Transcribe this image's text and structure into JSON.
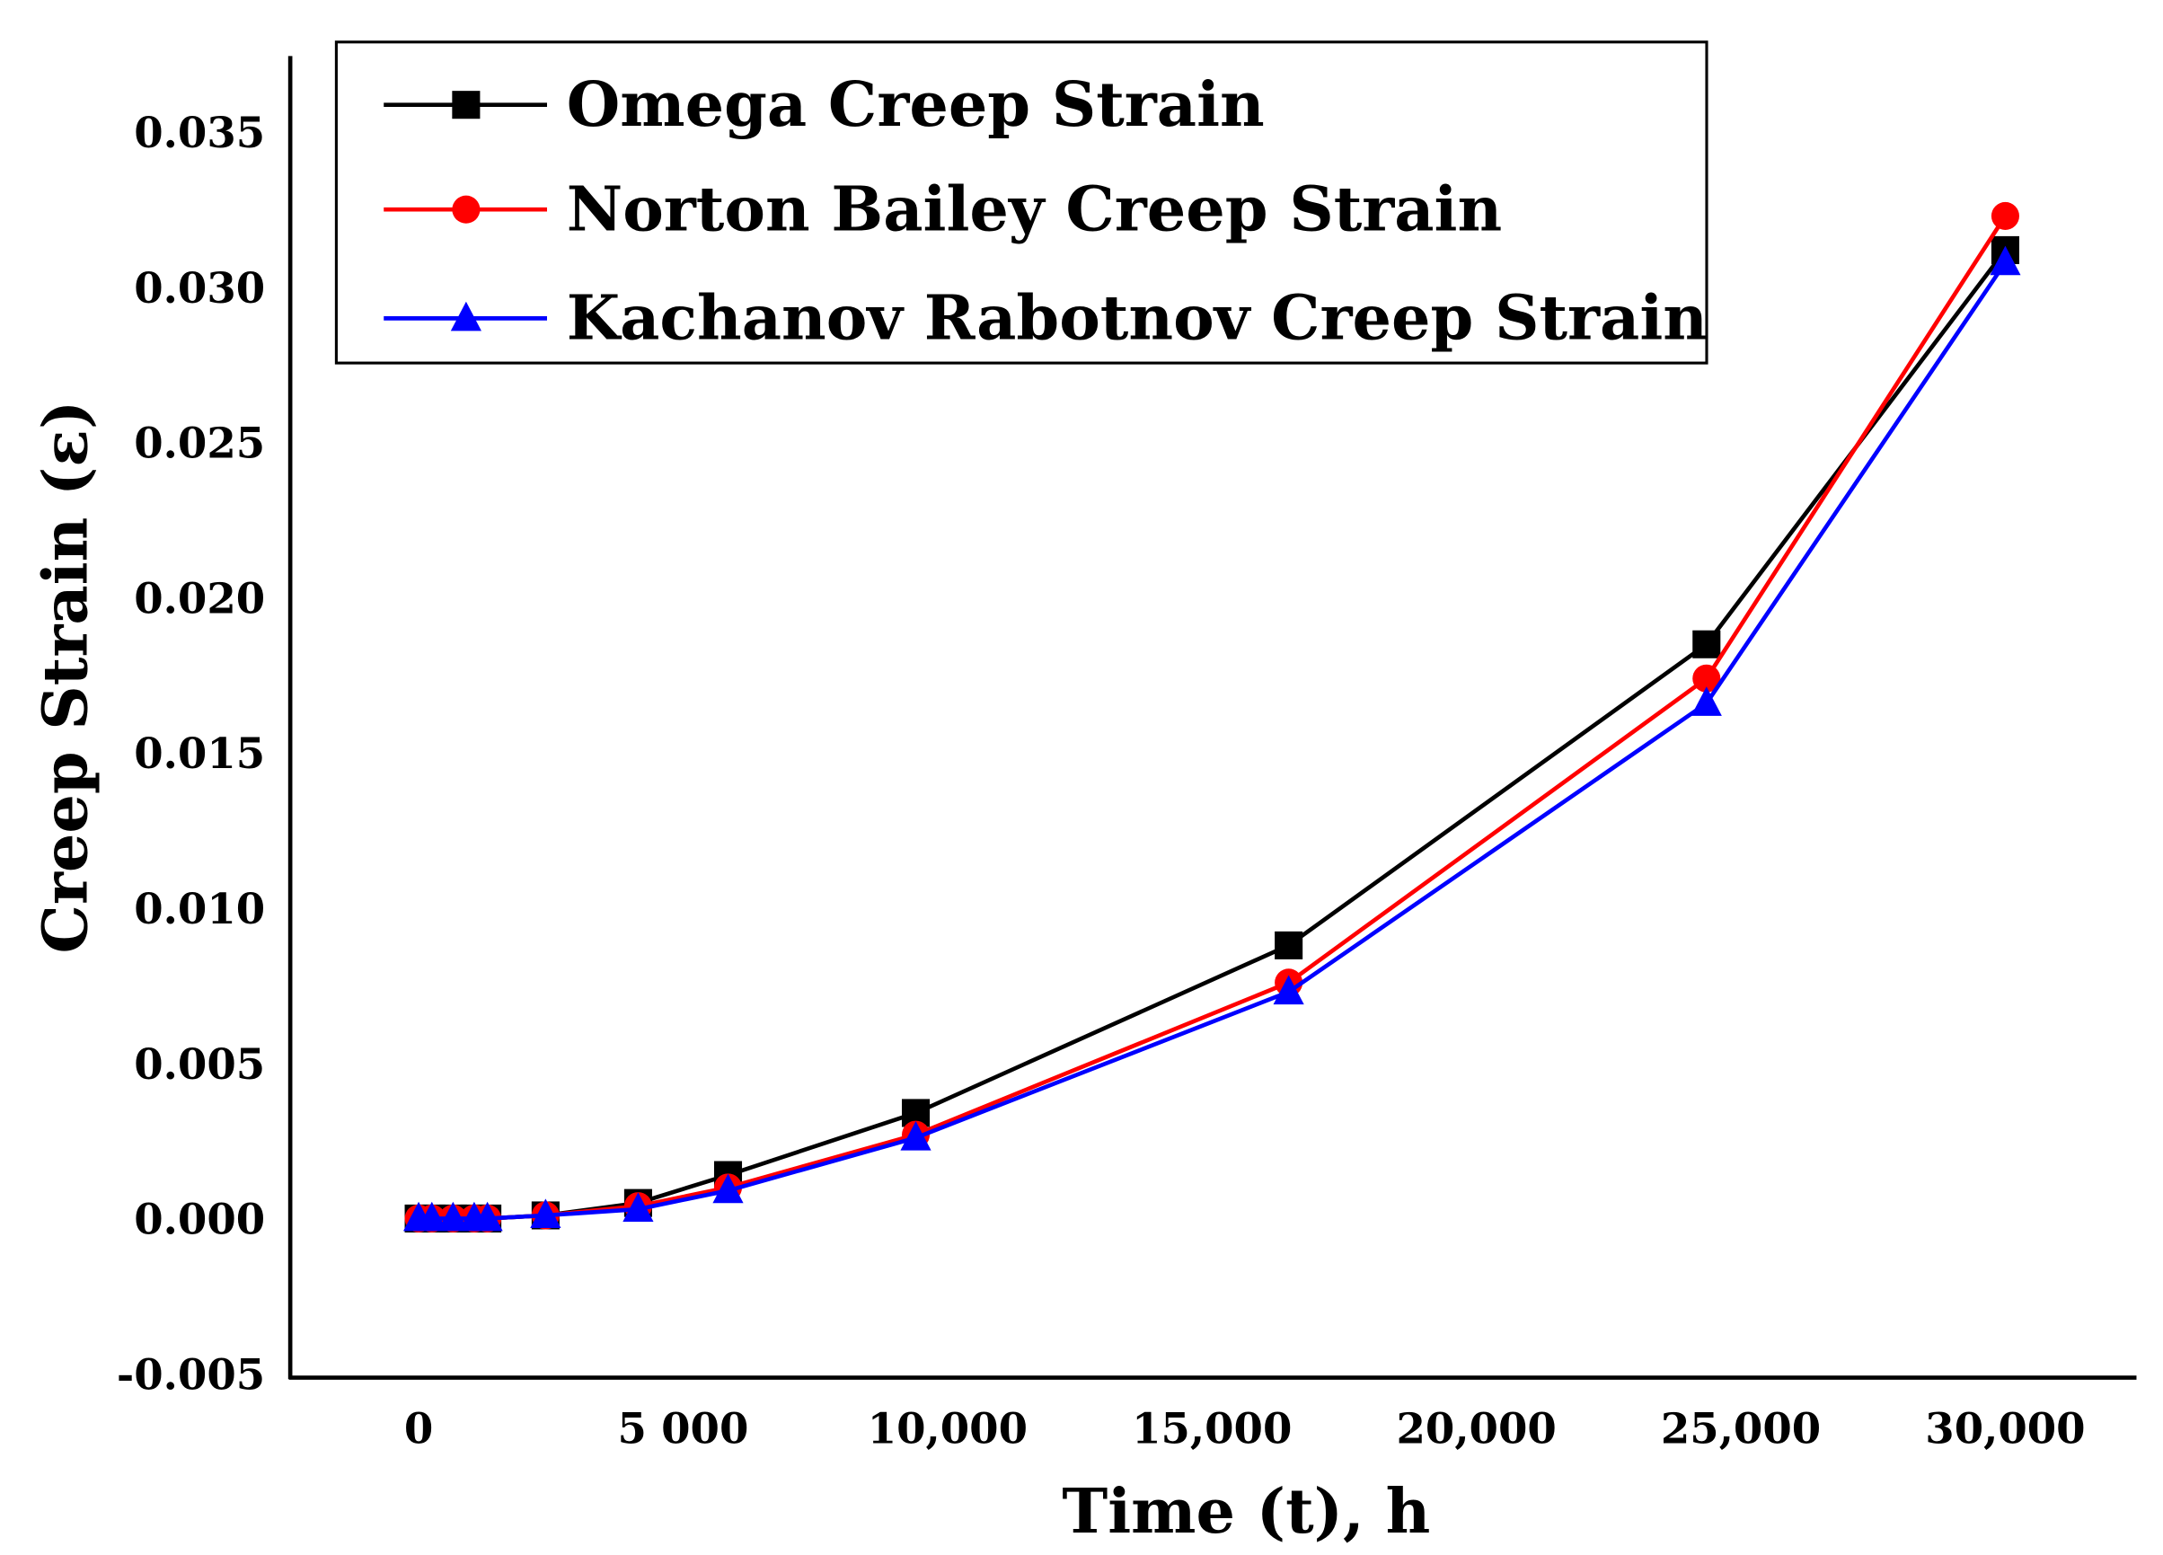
{
  "chart_data": {
    "type": "line",
    "title": "",
    "xlabel": "Time (t), h",
    "ylabel": "Creep Strain (ε)",
    "xlim": [
      -1500,
      32000
    ],
    "ylim": [
      -0.005,
      0.037
    ],
    "x_ticks": [
      0,
      5000,
      10000,
      15000,
      20000,
      25000,
      30000
    ],
    "x_tick_labels": [
      "0",
      "5 000",
      "10,000",
      "15,000",
      "20,000",
      "25,000",
      "30,000"
    ],
    "y_ticks": [
      -0.005,
      0,
      0.005,
      0.01,
      0.015,
      0.02,
      0.025,
      0.03,
      0.035
    ],
    "y_tick_labels": [
      "-0.005",
      "0.000",
      "0.005",
      "0.010",
      "0.015",
      "0.020",
      "0.025",
      "0.030",
      "0.035"
    ],
    "grid": false,
    "legend_position": "top-left",
    "series": [
      {
        "name": "Omega Creep Strain",
        "color": "#000000",
        "marker": "square",
        "x": [
          0,
          250,
          650,
          1050,
          1300,
          2400,
          4150,
          5850,
          9400,
          16450,
          24350,
          30000
        ],
        "y": [
          0,
          0,
          0,
          0,
          0,
          0.0001,
          0.0005,
          0.0014,
          0.0034,
          0.0088,
          0.0185,
          0.0312
        ]
      },
      {
        "name": "Norton Bailey Creep Strain",
        "color": "#ff0000",
        "marker": "circle",
        "x": [
          0,
          250,
          650,
          1050,
          1300,
          2400,
          4150,
          5850,
          9400,
          16450,
          24350,
          30000
        ],
        "y": [
          0,
          0,
          0,
          0,
          0,
          0.0001,
          0.0004,
          0.001,
          0.0027,
          0.0076,
          0.0174,
          0.0323
        ]
      },
      {
        "name": "Kachanov Rabotnov Creep Strain",
        "color": "#0000ff",
        "marker": "triangle",
        "x": [
          0,
          250,
          650,
          1050,
          1300,
          2400,
          4150,
          5850,
          9400,
          16450,
          24350,
          30000
        ],
        "y": [
          0,
          0,
          0,
          0,
          0,
          0.0001,
          0.0003,
          0.0009,
          0.0026,
          0.0073,
          0.0166,
          0.0308
        ]
      }
    ]
  }
}
